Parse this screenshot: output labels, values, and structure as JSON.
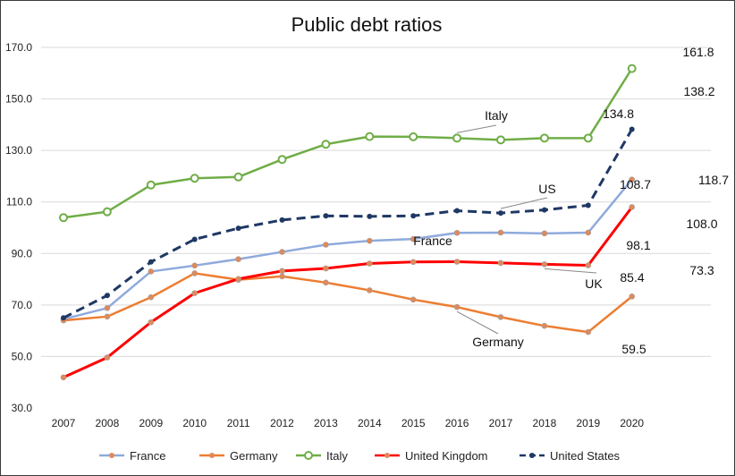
{
  "chart_data": {
    "type": "line",
    "title": "Public debt ratios",
    "xlabel": "",
    "ylabel": "",
    "x": [
      "2007",
      "2008",
      "2009",
      "2010",
      "2011",
      "2012",
      "2013",
      "2014",
      "2015",
      "2016",
      "2017",
      "2018",
      "2019",
      "2020"
    ],
    "ylim": [
      30,
      170
    ],
    "yticks": [
      "30.0",
      "50.0",
      "70.0",
      "90.0",
      "110.0",
      "130.0",
      "150.0",
      "170.0"
    ],
    "grid": true,
    "legend_position": "bottom",
    "series": [
      {
        "name": "France",
        "color": "#8faadc",
        "style": "solid-dot",
        "values": [
          64.5,
          68.8,
          83.0,
          85.3,
          87.8,
          90.6,
          93.4,
          94.9,
          95.6,
          98.0,
          98.1,
          97.8,
          98.1,
          118.7
        ]
      },
      {
        "name": "Germany",
        "color": "#ed7d31",
        "style": "solid-dot",
        "values": [
          64.0,
          65.5,
          73.0,
          82.3,
          79.8,
          81.1,
          78.7,
          75.7,
          72.1,
          69.2,
          65.3,
          61.9,
          59.5,
          73.3
        ]
      },
      {
        "name": "Italy",
        "color": "#70ad47",
        "style": "open-circle",
        "values": [
          103.9,
          106.2,
          116.6,
          119.2,
          119.7,
          126.5,
          132.4,
          135.4,
          135.3,
          134.8,
          134.1,
          134.8,
          134.8,
          161.8
        ]
      },
      {
        "name": "United Kingdom",
        "color": "#ff0000",
        "style": "solid-dot",
        "values": [
          41.9,
          49.6,
          63.3,
          74.6,
          80.1,
          83.2,
          84.2,
          86.1,
          86.7,
          86.8,
          86.3,
          85.8,
          85.4,
          108.0
        ]
      },
      {
        "name": "United States",
        "color": "#1f3864",
        "style": "dashed-dot",
        "values": [
          65.0,
          73.7,
          86.7,
          95.5,
          99.8,
          103.0,
          104.6,
          104.4,
          104.6,
          106.6,
          105.7,
          106.9,
          108.7,
          138.2
        ]
      }
    ],
    "annotations": {
      "italy_label": "Italy",
      "us_label": "US",
      "france_label": "France",
      "uk_label": "UK",
      "germany_label": "Germany",
      "italy_2019": "134.8",
      "italy_2020": "161.8",
      "us_2019": "108.7",
      "us_2020": "138.2",
      "france_2019": "98.1",
      "france_2020": "118.7",
      "uk_2019": "85.4",
      "uk_2020": "108.0",
      "germany_2019": "59.5",
      "germany_2020": "73.3"
    }
  }
}
